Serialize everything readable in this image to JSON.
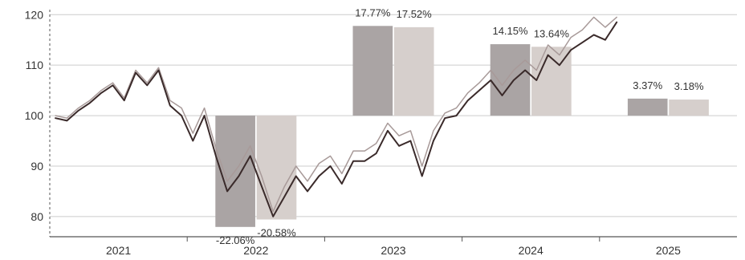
{
  "chart_data": {
    "type": "line",
    "title": "",
    "xlabel": "",
    "ylabel": "",
    "ylim": [
      76,
      121
    ],
    "y_ticks": [
      80,
      90,
      100,
      110,
      120
    ],
    "x_range": [
      "2021-01",
      "2025-12"
    ],
    "x_tick_labels": [
      "2021",
      "2022",
      "2023",
      "2024",
      "2025"
    ],
    "grid": true,
    "legend": "none",
    "colors": {
      "dark_line": "#3a2a2a",
      "light_line": "#a89a99",
      "dark_bar": "#aaa4a4",
      "light_bar": "#d6cfcc",
      "grid": "#cccccc",
      "axis": "#555555"
    },
    "series": [
      {
        "x": [
          "2021-01",
          "2021-02",
          "2021-03",
          "2021-04",
          "2021-05",
          "2021-06",
          "2021-07",
          "2021-08",
          "2021-09",
          "2021-10",
          "2021-11",
          "2021-12",
          "2022-01",
          "2022-02",
          "2022-03",
          "2022-04",
          "2022-05",
          "2022-06",
          "2022-07",
          "2022-08",
          "2022-09",
          "2022-10",
          "2022-11",
          "2022-12",
          "2023-01",
          "2023-02",
          "2023-03",
          "2023-04",
          "2023-05",
          "2023-06",
          "2023-07",
          "2023-08",
          "2023-09",
          "2023-10",
          "2023-11",
          "2023-12",
          "2024-01",
          "2024-02",
          "2024-03",
          "2024-04",
          "2024-05",
          "2024-06",
          "2024-07",
          "2024-08",
          "2024-09",
          "2024-10",
          "2024-11",
          "2024-12",
          "2025-01",
          "2025-02"
        ],
        "values": [
          99.5,
          99,
          101,
          102.5,
          104.5,
          106,
          103,
          108.5,
          106,
          109,
          102,
          100,
          95,
          100,
          92,
          85,
          88,
          92,
          86,
          80,
          84,
          88,
          85,
          88,
          90,
          86.5,
          91,
          91,
          92.5,
          97,
          94,
          95,
          88,
          95,
          99.5,
          100,
          103,
          105,
          107,
          104,
          107,
          109,
          107,
          112,
          110,
          113,
          114.5,
          116,
          115,
          118.5
        ]
      },
      {
        "x": [
          "2021-01",
          "2021-02",
          "2021-03",
          "2021-04",
          "2021-05",
          "2021-06",
          "2021-07",
          "2021-08",
          "2021-09",
          "2021-10",
          "2021-11",
          "2021-12",
          "2022-01",
          "2022-02",
          "2022-03",
          "2022-04",
          "2022-05",
          "2022-06",
          "2022-07",
          "2022-08",
          "2022-09",
          "2022-10",
          "2022-11",
          "2022-12",
          "2023-01",
          "2023-02",
          "2023-03",
          "2023-04",
          "2023-05",
          "2023-06",
          "2023-07",
          "2023-08",
          "2023-09",
          "2023-10",
          "2023-11",
          "2023-12",
          "2024-01",
          "2024-02",
          "2024-03",
          "2024-04",
          "2024-05",
          "2024-06",
          "2024-07",
          "2024-08",
          "2024-09",
          "2024-10",
          "2024-11",
          "2024-12",
          "2025-01",
          "2025-02"
        ],
        "values": [
          100,
          99.5,
          101.5,
          103,
          105,
          106.5,
          103.5,
          109,
          106.5,
          109.5,
          103,
          101.5,
          96.5,
          101.5,
          93.5,
          87,
          90,
          94,
          88,
          81,
          86,
          90,
          87,
          90.5,
          92,
          88.5,
          93,
          93,
          94.5,
          98.5,
          96,
          97,
          90,
          97,
          100.5,
          101.5,
          104.5,
          106.5,
          109,
          106,
          109,
          111,
          109,
          114,
          112,
          115.5,
          117,
          119.5,
          117.5,
          119.5
        ]
      }
    ],
    "annual_returns": [
      {
        "year": "2022",
        "values": [
          -22.06,
          -20.58
        ],
        "labels": [
          "-22.06%",
          "-20.58%"
        ]
      },
      {
        "year": "2023",
        "values": [
          17.77,
          17.52
        ],
        "labels": [
          "17.77%",
          "17.52%"
        ]
      },
      {
        "year": "2024",
        "values": [
          14.15,
          13.64
        ],
        "labels": [
          "14.15%",
          "13.64%"
        ]
      },
      {
        "year": "2025",
        "values": [
          3.37,
          3.18
        ],
        "labels": [
          "3.37%",
          "3.18%"
        ]
      }
    ]
  }
}
